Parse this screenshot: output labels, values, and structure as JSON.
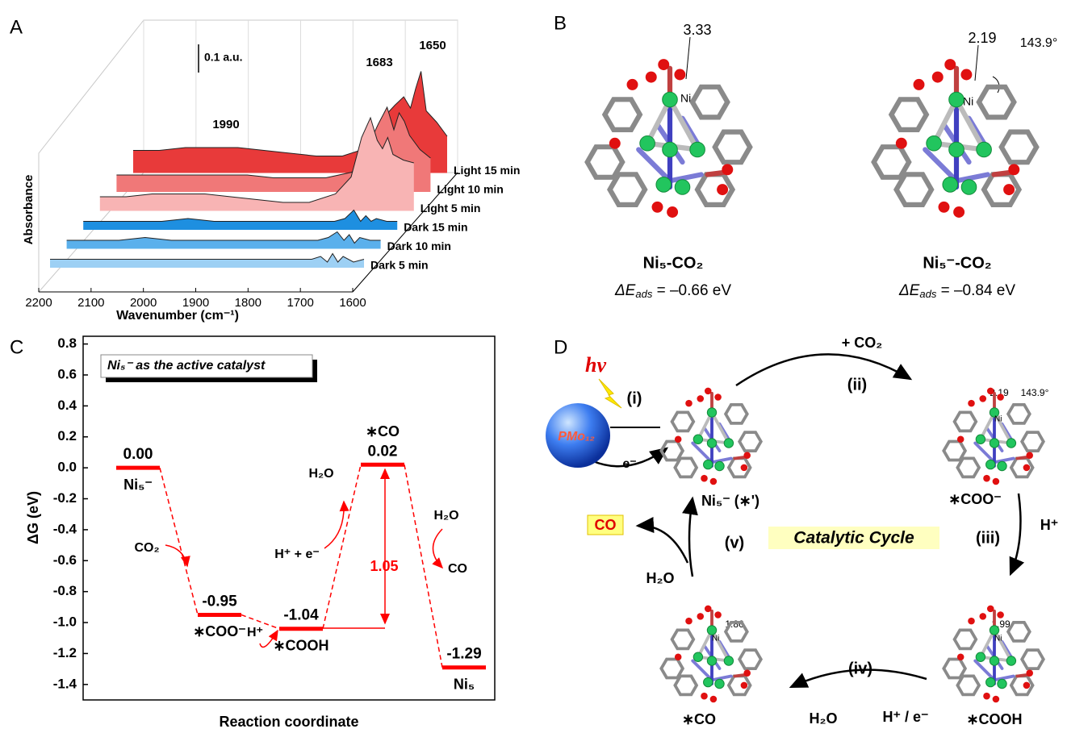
{
  "panel_labels": [
    "A",
    "B",
    "C",
    "D"
  ],
  "chart_data": [
    {
      "type": "waterfall",
      "xlabel": "Wavenumber (cm⁻¹)",
      "ylabel": "Absorbance",
      "x": [
        2200,
        2150,
        2100,
        2050,
        2000,
        1950,
        1900,
        1850,
        1800,
        1750,
        1720,
        1700,
        1683,
        1670,
        1660,
        1650,
        1640,
        1620,
        1600
      ],
      "xlim": [
        2200,
        1600
      ],
      "xticks": [
        2200,
        2100,
        2000,
        1900,
        1800,
        1700,
        1600
      ],
      "scale_bar": {
        "value": 0.1,
        "label": "0.1 a.u."
      },
      "peak_labels": [
        "1990",
        "1683",
        "1650"
      ],
      "series": [
        {
          "name": "Dark 5 min",
          "color": "#9dd0f4",
          "values": [
            0.03,
            0.03,
            0.03,
            0.03,
            0.03,
            0.03,
            0.03,
            0.03,
            0.03,
            0.03,
            0.03,
            0.03,
            0.04,
            0.02,
            0.05,
            0.02,
            0.04,
            0.02,
            0.03
          ]
        },
        {
          "name": "Dark 10 min",
          "color": "#5ab0ec",
          "values": [
            0.03,
            0.03,
            0.03,
            0.04,
            0.03,
            0.03,
            0.03,
            0.03,
            0.03,
            0.03,
            0.03,
            0.04,
            0.06,
            0.03,
            0.05,
            0.02,
            0.04,
            0.03,
            0.03
          ]
        },
        {
          "name": "Dark 15 min",
          "color": "#1e8fe0",
          "values": [
            0.03,
            0.03,
            0.03,
            0.03,
            0.04,
            0.03,
            0.03,
            0.03,
            0.03,
            0.03,
            0.03,
            0.04,
            0.07,
            0.03,
            0.05,
            0.03,
            0.04,
            0.03,
            0.03
          ]
        },
        {
          "name": "Light 5 min",
          "color": "#f8b4b4",
          "values": [
            0.05,
            0.05,
            0.06,
            0.06,
            0.06,
            0.05,
            0.04,
            0.03,
            0.03,
            0.06,
            0.12,
            0.26,
            0.33,
            0.25,
            0.22,
            0.26,
            0.2,
            0.18,
            0.17
          ]
        },
        {
          "name": "Light 10 min",
          "color": "#f07878",
          "values": [
            0.06,
            0.06,
            0.06,
            0.06,
            0.06,
            0.06,
            0.05,
            0.05,
            0.05,
            0.07,
            0.16,
            0.24,
            0.3,
            0.22,
            0.28,
            0.25,
            0.2,
            0.15,
            0.12
          ]
        },
        {
          "name": "Light 15 min",
          "color": "#e83a3a",
          "values": [
            0.08,
            0.08,
            0.09,
            0.09,
            0.09,
            0.08,
            0.07,
            0.06,
            0.06,
            0.09,
            0.2,
            0.24,
            0.27,
            0.23,
            0.3,
            0.36,
            0.22,
            0.18,
            0.13
          ]
        }
      ]
    },
    {
      "type": "energy_diagram",
      "title": "Ni₅⁻ as the active catalyst",
      "xlabel": "Reaction coordinate",
      "ylabel": "ΔG (eV)",
      "categories": [
        "Ni₅⁻",
        "∗COO⁻",
        "∗COOH",
        "∗CO",
        "Ni₅"
      ],
      "values": [
        0,
        -0.95,
        -1.04,
        0.02,
        -1.29
      ],
      "value_labels": [
        "0.00",
        "-0.95",
        "-1.04",
        "0.02",
        "-1.29"
      ],
      "color": "#ff0000",
      "ylim": [
        -1.5,
        0.85
      ],
      "yticks": [
        0.8,
        0.6,
        0.4,
        0.2,
        {
          "value": 0,
          "label": "0.0"
        },
        -0.2,
        -0.4,
        -0.6,
        -0.8,
        {
          "value": -1,
          "label": "-1.0"
        },
        -1.2,
        -1.4
      ],
      "annotations": [
        "CO₂",
        "H⁺",
        "H₂O",
        "H⁺ + e⁻",
        "H₂O",
        "CO",
        "1.05"
      ]
    }
  ],
  "panel_b": {
    "structures": [
      {
        "distance": "3.33",
        "metal": "Ni",
        "name": "Ni₅-CO₂",
        "energy": {
          "symbol": "ΔE",
          "subscript": "ads",
          "text": " = –0.66 eV"
        }
      },
      {
        "distance": "2.19",
        "angle": "143.9°",
        "metal": "Ni",
        "name": "Ni₅⁻-CO₂",
        "energy": {
          "symbol": "ΔE",
          "subscript": "ads",
          "text": " = –0.84 eV"
        }
      }
    ]
  },
  "panel_d": {
    "light": "hν",
    "steps": [
      "(i)",
      "(ii)",
      "(iii)",
      "(iv)",
      "(v)"
    ],
    "photosensitizer": "PMo₁₂",
    "electron": "e⁻",
    "co2": "+ CO₂",
    "proton": "H⁺",
    "proton_electron": "H⁺ / e⁻",
    "water": "H₂O",
    "product": "CO",
    "intermediates": [
      "Ni₅⁻ (∗')",
      "∗COO⁻",
      "∗COOH",
      "∗CO"
    ],
    "center": "Catalytic Cycle",
    "metal": "Ni",
    "distances": [
      "2.19",
      "143.9°",
      "1.86",
      "1.99"
    ]
  }
}
